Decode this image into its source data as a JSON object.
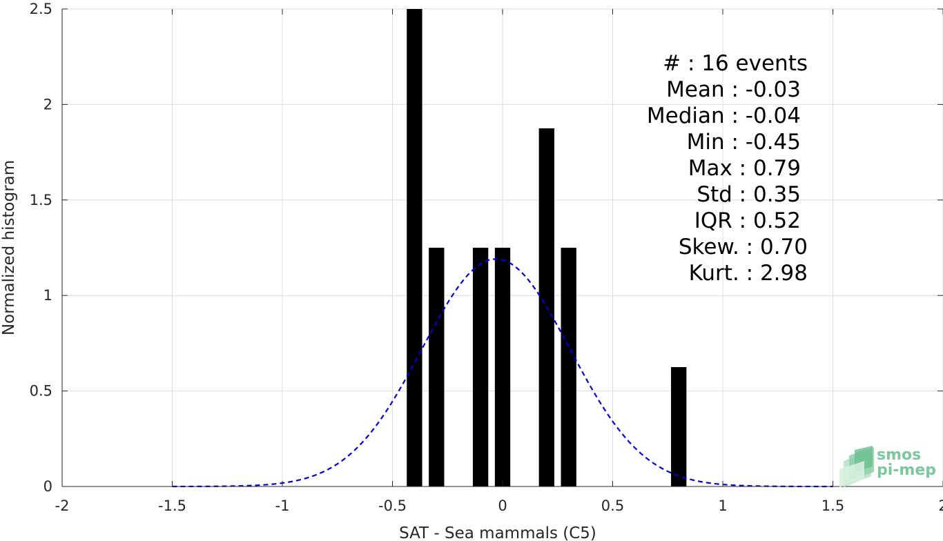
{
  "chart_data": {
    "type": "bar",
    "title": "",
    "xlabel": "SAT - Sea mammals (C5)",
    "ylabel": "Normalized histogram",
    "xlim": [
      -2,
      2
    ],
    "ylim": [
      0,
      2.5
    ],
    "xticks": [
      "-2",
      "-1.5",
      "-1",
      "-0.5",
      "0",
      "0.5",
      "1",
      "1.5",
      "2"
    ],
    "yticks": [
      "0",
      "0.5",
      "1",
      "1.5",
      "2",
      "2.5"
    ],
    "grid": true,
    "bin_width": 0.07,
    "bars": [
      {
        "x": -0.4,
        "value": 2.5
      },
      {
        "x": -0.3,
        "value": 1.25
      },
      {
        "x": -0.1,
        "value": 1.25
      },
      {
        "x": 0.0,
        "value": 1.25
      },
      {
        "x": 0.2,
        "value": 1.875
      },
      {
        "x": 0.3,
        "value": 1.25
      },
      {
        "x": 0.8,
        "value": 0.625
      }
    ],
    "fit_curve": {
      "type": "normal",
      "mean": -0.03,
      "std": 0.335,
      "x_range": [
        -1.5,
        1.5
      ],
      "color": "#0000dd",
      "style": "dashed"
    },
    "bar_color": "#000000",
    "stats": [
      {
        "label": "#  : 16 events"
      },
      {
        "label": "Mean : -0.03"
      },
      {
        "label": "Median : -0.04"
      },
      {
        "label": "Min : -0.45"
      },
      {
        "label": "Max : 0.79"
      },
      {
        "label": "Std : 0.35"
      },
      {
        "label": "IQR : 0.52"
      },
      {
        "label": "Skew. : 0.70"
      },
      {
        "label": "Kurt. : 2.98"
      }
    ]
  },
  "logo": {
    "line1": "smos",
    "line2": "pi-mep"
  }
}
